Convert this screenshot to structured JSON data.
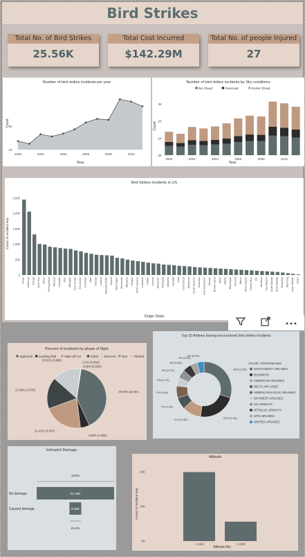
{
  "page_title": "Bird Strikes",
  "kpis": [
    {
      "label": "Total No. of Bird Strikes",
      "value": "25.56K"
    },
    {
      "label": "Total Cost Incurred",
      "value": "$142.29M"
    },
    {
      "label": "Total No. of people Injured",
      "value": "27"
    }
  ],
  "colors": {
    "slate": "#5f6c6e",
    "tan": "#bf9a80",
    "dark": "#2c2a2a",
    "light": "#c9cfd1",
    "area": "#c4c9cc"
  },
  "chart_data": [
    {
      "type": "area",
      "title": "Number of bird strikes incidents per year",
      "xlabel": "Year",
      "ylabel": "Count",
      "x": [
        2000,
        2001,
        2002,
        2003,
        2004,
        2005,
        2006,
        2007,
        2008,
        2009,
        2010,
        2011
      ],
      "values": [
        1362,
        1250,
        1650,
        1560,
        1680,
        1860,
        2150,
        2300,
        2260,
        3130,
        3030,
        2830
      ],
      "xticks": [
        "2000",
        "2002",
        "2004",
        "2006",
        "2008",
        "2010"
      ],
      "yticks": [
        "2K",
        "1K"
      ],
      "ylim": [
        1000,
        3400
      ]
    },
    {
      "type": "bar",
      "stacked": true,
      "title": "Number of bird strikes incidents by Sky conditions",
      "xlabel": "Year",
      "ylabel": "Count",
      "legend": "top",
      "categories": [
        "2000",
        "2001",
        "2002",
        "2003",
        "2004",
        "2005",
        "2006",
        "2007",
        "2008",
        "2009",
        "2010",
        "2011"
      ],
      "series": [
        {
          "name": "No Cloud",
          "values": [
            540,
            500,
            600,
            580,
            620,
            670,
            770,
            830,
            820,
            1140,
            1100,
            1030
          ]
        },
        {
          "name": "Overcast",
          "values": [
            230,
            210,
            270,
            250,
            270,
            310,
            350,
            380,
            370,
            520,
            500,
            470
          ]
        },
        {
          "name": "Some Cloud",
          "values": [
            600,
            540,
            780,
            730,
            790,
            880,
            1030,
            1100,
            1070,
            1470,
            1430,
            1330
          ]
        }
      ],
      "xticks": [
        "2000",
        "2002",
        "2004",
        "2006",
        "2008",
        "2010"
      ],
      "yticks": [
        "3K",
        "2K",
        "1K",
        "0K"
      ],
      "ylim": [
        0,
        3400
      ]
    },
    {
      "type": "bar",
      "title": "Bird Strikes incidents in US",
      "xlabel": "Origin State",
      "ylabel": "Count of Incident Key",
      "yticks": [
        "2,500",
        "2,000",
        "1,500",
        "1,000",
        "500",
        "0"
      ],
      "ylim": [
        0,
        2700
      ],
      "categories": [
        "Texas",
        "California",
        "Florida",
        "New York",
        "Illinois",
        "Pennsylvania",
        "Missouri",
        "Colorado",
        "Ohio",
        "Michigan",
        "New Jersey",
        "Tennessee",
        "Kentucky",
        "Utah",
        "Georgia",
        "Indiana",
        "Massachusetts",
        "Virginia",
        "Washington",
        "Minnesota",
        "Maryland",
        "Oregon",
        "North Carolina",
        "Louisiana",
        "Hawaii",
        "Arizona",
        "Wisconsin",
        "Nebraska",
        "Alabama",
        "Nevada",
        "Iowa",
        "Connecticut",
        "Oklahoma",
        "South Carolina",
        "Arkansas",
        "New Hampshire",
        "Kansas",
        "Rhode Island",
        "Idaho",
        "Alaska",
        "Mississippi",
        "Vermont",
        "Maine",
        "West Virginia",
        "Puerto Rico",
        "DC",
        "Montana",
        "New Mexico",
        "South Dakota",
        "North Dakota",
        "Delaware",
        "Wyoming",
        "Virgin Islands",
        "Guam"
      ],
      "values": [
        2450,
        2060,
        1320,
        1010,
        990,
        920,
        900,
        880,
        860,
        850,
        800,
        770,
        720,
        690,
        660,
        650,
        640,
        630,
        560,
        540,
        500,
        470,
        450,
        430,
        400,
        380,
        370,
        340,
        330,
        320,
        300,
        290,
        280,
        260,
        250,
        240,
        230,
        220,
        210,
        200,
        190,
        180,
        170,
        160,
        150,
        140,
        130,
        120,
        110,
        100,
        80,
        60,
        40,
        20
      ]
    },
    {
      "type": "pie",
      "title": "Percent of incidents by phase of flight",
      "legend": "top",
      "categories": [
        "Approach",
        "Landing Roll",
        "Take-off run",
        "Climb",
        "Descent",
        "Taxi",
        "Parked"
      ],
      "values": [
        40.69,
        4.92,
        21.41,
        17.08,
        15.61,
        0.2,
        0.09
      ],
      "data_labels": [
        "40.69% (10.4K)",
        "4.92% (1.26K)",
        "21.41% (5.47K)",
        "17.08% (4.37K)",
        "15.61% (3.99K)",
        "0.2% (0.05K)",
        "0.09% (0.02K)"
      ]
    },
    {
      "type": "pie",
      "donut": true,
      "title": "Top 10 Airlines having encountered bird strikes incidents",
      "legend_title": "Aircraft: Airline/Operator",
      "categories": [
        "SOUTHWEST AIRLINES",
        "BUSINESS",
        "AMERICAN AIRLINES",
        "DELTA AIR LINES",
        "AMERICAN EAGLE AIRLINES",
        "SKYWEST AIRLINES",
        "US AIRWAYS",
        "JETBLUE AIRWAYS",
        "UPS AIRLINES",
        "UNITED AIRLINES"
      ],
      "values": [
        30.0,
        22.0,
        11.0,
        7.0,
        7.0,
        5.0,
        5.0,
        5.0,
        4.0,
        4.0
      ],
      "data_labels": [
        "30% (3.9K)",
        "22% (2.9K)",
        "11% (1.4K)",
        "7% (1.0K)",
        "7% (0.9K)",
        "5% (0.7K)",
        "5% (0.7K)",
        "5% (0.6K)",
        "4% (0.5K)",
        "4% (0.5K)"
      ]
    },
    {
      "type": "bar",
      "orientation": "horizontal",
      "title": "Indicated Damage",
      "categories": [
        "No damage",
        "Caused damage"
      ],
      "values": [
        22.18,
        3.38
      ],
      "data_labels": [
        "22.18K",
        "3.38K"
      ],
      "percent_labels": [
        "100%",
        "15.2%"
      ]
    },
    {
      "type": "bar",
      "title": "Altitude",
      "xlabel": "Altitude Bin",
      "ylabel": "Count of Incident Key",
      "categories": [
        "< 1000",
        "> 1000"
      ],
      "values": [
        19.9,
        5.6
      ],
      "yticks": [
        "20K",
        "10K",
        "0K"
      ],
      "ylim": [
        0,
        22
      ]
    }
  ]
}
